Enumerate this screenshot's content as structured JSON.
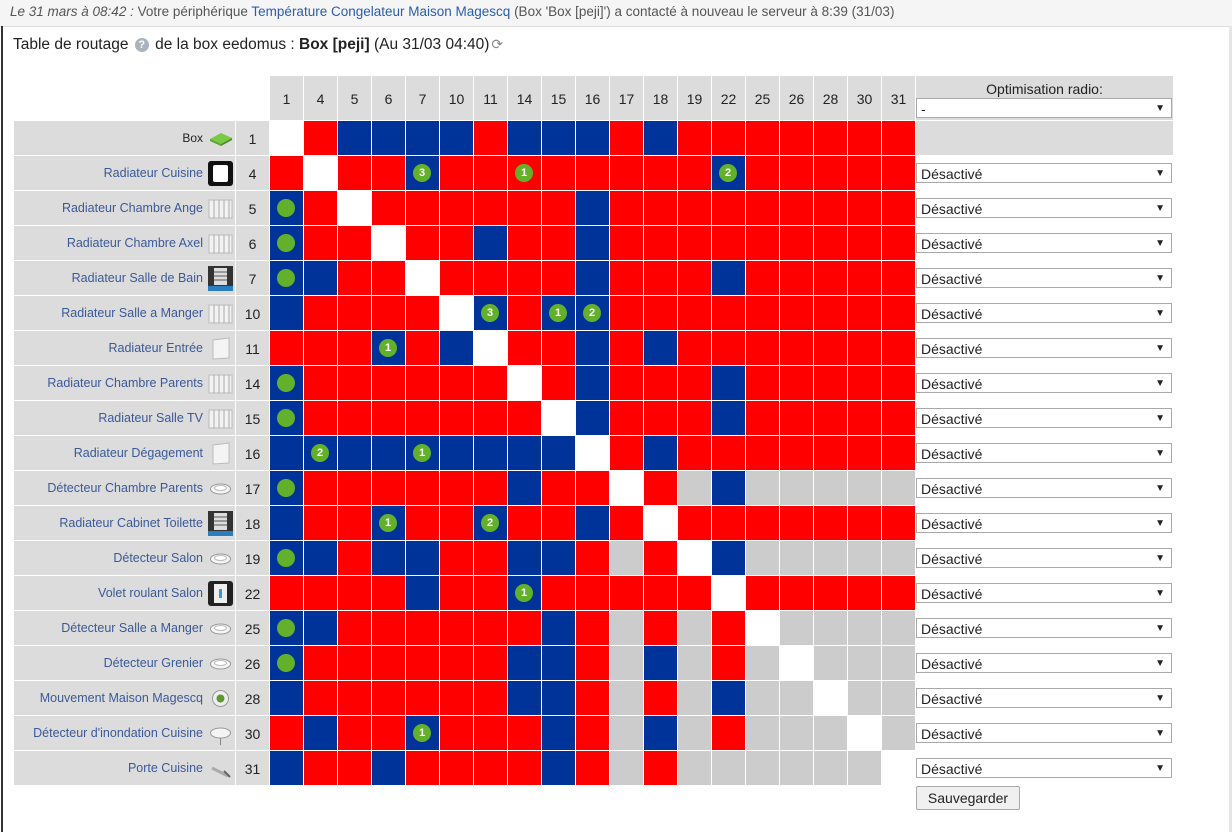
{
  "notification": {
    "prefix": "Le 31 mars à 08:42 :",
    "text1": " Votre périphérique ",
    "device": "Température Congelateur Maison Magescq",
    "text2": " (Box 'Box [peji]') a contacté à nouveau le serveur à 8:39 (31/03)"
  },
  "title": {
    "prefix": "Table de routage ",
    "middle": " de la box eedomus : ",
    "box": "Box [peji]",
    "date": " (Au 31/03 04:40)"
  },
  "columns": [
    "1",
    "4",
    "5",
    "6",
    "7",
    "10",
    "11",
    "14",
    "15",
    "16",
    "17",
    "18",
    "19",
    "22",
    "25",
    "26",
    "28",
    "30",
    "31"
  ],
  "optimisation": {
    "header": "Optimisation radio:",
    "top_select": "-",
    "default_value": "Désactivé"
  },
  "save_label": "Sauvegarder",
  "colors": {
    "red": "#ff0000",
    "blue": "#003399",
    "gray": "#cccccc",
    "white": "#ffffff",
    "dot": "#63b12b"
  },
  "rows": [
    {
      "name": "Box",
      "id": "1",
      "icon": "box-icon",
      "cells": "WRBBBBRBBBRBRRRRRRR",
      "dots": {}
    },
    {
      "name": "Radiateur Cuisine",
      "id": "4",
      "icon": "radiator-black-icon",
      "cells": "RWRRBRRRRRRRRBRRRRR",
      "dots": {
        "4": "3",
        "7": "1",
        "13": "2"
      }
    },
    {
      "name": "Radiateur Chambre Ange",
      "id": "5",
      "icon": "radiator-white-icon",
      "cells": "BRWRRRRRRBRRRRRRRRR",
      "dots": {
        "0": ""
      }
    },
    {
      "name": "Radiateur Chambre Axel",
      "id": "6",
      "icon": "radiator-white-icon",
      "cells": "BRRWRRBRRBRRRRRRRRR",
      "dots": {
        "0": ""
      }
    },
    {
      "name": "Radiateur Salle de Bain",
      "id": "7",
      "icon": "towel-radiator-icon",
      "cells": "BBRRWRRRRBRRRBRRRRR",
      "dots": {
        "0": ""
      }
    },
    {
      "name": "Radiateur Salle a Manger",
      "id": "10",
      "icon": "radiator-white-icon",
      "cells": "BRRRRWBRBBRRRRRRRRR",
      "dots": {
        "6": "3",
        "8": "1",
        "9": "2"
      }
    },
    {
      "name": "Radiateur Entrée",
      "id": "11",
      "icon": "panel-radiator-icon",
      "cells": "RRRBRBWRRBRBRRRRRRR",
      "dots": {
        "3": "1"
      }
    },
    {
      "name": "Radiateur Chambre Parents",
      "id": "14",
      "icon": "radiator-white-icon",
      "cells": "BRRRRRRWRBRRRBRRRRR",
      "dots": {
        "0": ""
      }
    },
    {
      "name": "Radiateur Salle TV",
      "id": "15",
      "icon": "radiator-white-icon",
      "cells": "BRRRRRRRWBRRRBRRRRR",
      "dots": {
        "0": ""
      }
    },
    {
      "name": "Radiateur Dégagement",
      "id": "16",
      "icon": "panel-radiator-icon",
      "cells": "BBBBBBBBBWRBRRRRRRR",
      "dots": {
        "1": "2",
        "4": "1"
      }
    },
    {
      "name": "Détecteur Chambre Parents",
      "id": "17",
      "icon": "smoke-detector-icon",
      "cells": "BRRRRRRBRRWRGBGGGGG",
      "dots": {
        "0": ""
      }
    },
    {
      "name": "Radiateur Cabinet Toilette",
      "id": "18",
      "icon": "towel-radiator-icon",
      "cells": "BRRBRRBRRBRWRRRRRRR",
      "dots": {
        "3": "1",
        "6": "2"
      }
    },
    {
      "name": "Détecteur Salon",
      "id": "19",
      "icon": "smoke-detector-icon",
      "cells": "BBRBBRRBBRGRWBGGGGG",
      "dots": {
        "0": ""
      }
    },
    {
      "name": "Volet roulant Salon",
      "id": "22",
      "icon": "shutter-icon",
      "cells": "RRRRBRRBRRRRRWRRRRR",
      "dots": {
        "7": "1"
      }
    },
    {
      "name": "Détecteur Salle a Manger",
      "id": "25",
      "icon": "smoke-detector-icon",
      "cells": "BBRRRRRRBRGRGRWGGGG",
      "dots": {
        "0": ""
      }
    },
    {
      "name": "Détecteur Grenier",
      "id": "26",
      "icon": "smoke-detector-icon",
      "cells": "BRRRRRRBBRGBGRGWGGG",
      "dots": {
        "0": ""
      }
    },
    {
      "name": "Mouvement Maison Magescq",
      "id": "28",
      "icon": "motion-sensor-icon",
      "cells": "BRRRRRRBBRGRGBGGWGG",
      "dots": {}
    },
    {
      "name": "Détecteur d'inondation Cuisine",
      "id": "30",
      "icon": "flood-sensor-icon",
      "cells": "RBRRBRRRBRGBGRGGGWG",
      "dots": {
        "4": "1"
      }
    },
    {
      "name": "Porte Cuisine",
      "id": "31",
      "icon": "door-sensor-icon",
      "cells": "BRRBRRRRBRGRGGGGGGW",
      "dots": {}
    }
  ]
}
